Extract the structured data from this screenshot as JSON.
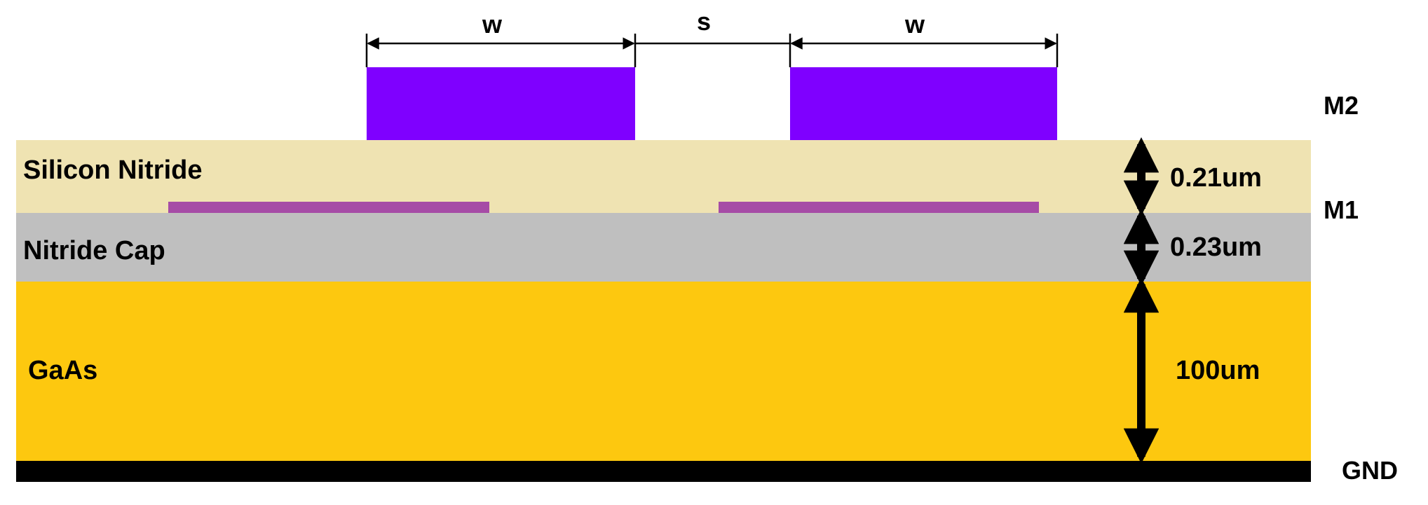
{
  "diagram": {
    "dimensions": {
      "width_label": "w",
      "spacing_label": "s"
    },
    "metal_labels": {
      "m2": "M2",
      "m1": "M1",
      "gnd": "GND"
    },
    "layers": [
      {
        "name": "Silicon Nitride",
        "thickness": "0.21um",
        "color": "#EFE3B2"
      },
      {
        "name": "Nitride Cap",
        "thickness": "0.23um",
        "color": "#BFBFBF"
      },
      {
        "name": "GaAs",
        "thickness": "100um",
        "color": "#FDC80F"
      }
    ],
    "colors": {
      "m2": "#7F00FF",
      "m1": "#A64CA6",
      "ground": "#000000"
    }
  }
}
